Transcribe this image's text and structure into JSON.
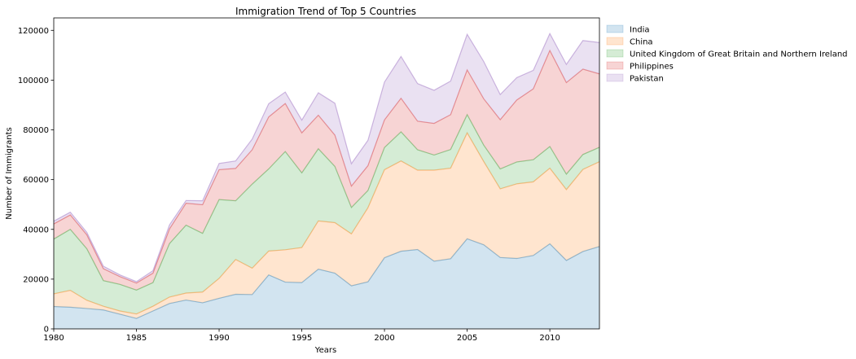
{
  "chart_data": {
    "type": "area",
    "stacked": true,
    "title": "Immigration Trend of Top 5 Countries",
    "xlabel": "Years",
    "ylabel": "Number of Immigrants",
    "xlim": [
      1980,
      2013
    ],
    "ylim": [
      0,
      125000
    ],
    "xticks": [
      1980,
      1985,
      1990,
      1995,
      2000,
      2005,
      2010
    ],
    "yticks": [
      0,
      20000,
      40000,
      60000,
      80000,
      100000,
      120000
    ],
    "grid": false,
    "legend_position": "outside-top-right",
    "alpha": 0.2,
    "x": [
      1980,
      1981,
      1982,
      1983,
      1984,
      1985,
      1986,
      1987,
      1988,
      1989,
      1990,
      1991,
      1992,
      1993,
      1994,
      1995,
      1996,
      1997,
      1998,
      1999,
      2000,
      2001,
      2002,
      2003,
      2004,
      2005,
      2006,
      2007,
      2008,
      2009,
      2010,
      2011,
      2012,
      2013
    ],
    "series": [
      {
        "name": "India",
        "color": "#1f77b4",
        "values": [
          9000,
          8700,
          8200,
          7600,
          5900,
          4200,
          7200,
          10200,
          11600,
          10500,
          12300,
          13900,
          13800,
          21700,
          18800,
          18600,
          24000,
          22400,
          17300,
          18900,
          28600,
          31200,
          31900,
          27200,
          28200,
          36200,
          33800,
          28700,
          28300,
          29500,
          34200,
          27500,
          31100,
          33100
        ]
      },
      {
        "name": "China",
        "color": "#ff7f0e",
        "values": [
          5100,
          6800,
          3300,
          1500,
          1300,
          1800,
          1900,
          2600,
          2800,
          4300,
          8000,
          14000,
          10600,
          9600,
          13000,
          14100,
          19400,
          20300,
          20900,
          29800,
          35400,
          36300,
          31900,
          36600,
          36400,
          42600,
          33500,
          27600,
          30000,
          29600,
          30400,
          28500,
          33000,
          34100
        ]
      },
      {
        "name": "United Kingdom of Great Britain and Northern Ireland",
        "color": "#2ca02c",
        "values": [
          22000,
          24500,
          20700,
          10300,
          10700,
          9600,
          9500,
          21500,
          27300,
          23600,
          31700,
          23600,
          33800,
          33000,
          39500,
          30000,
          29000,
          22600,
          10600,
          6900,
          8900,
          11700,
          8200,
          6100,
          7500,
          7300,
          6600,
          8000,
          8800,
          8900,
          8700,
          6200,
          6000,
          5800
        ]
      },
      {
        "name": "Philippines",
        "color": "#d62728",
        "values": [
          6100,
          5800,
          5600,
          4800,
          3100,
          2800,
          3800,
          5900,
          8800,
          11500,
          12000,
          13000,
          13800,
          20900,
          19300,
          16100,
          13500,
          12600,
          8600,
          10000,
          11100,
          13500,
          11500,
          12700,
          14000,
          18000,
          18600,
          19800,
          24900,
          28500,
          38600,
          36800,
          34300,
          29500
        ]
      },
      {
        "name": "Pakistan",
        "color": "#9467bd",
        "values": [
          1100,
          1100,
          1000,
          1000,
          700,
          600,
          1000,
          1600,
          1100,
          1600,
          2500,
          3000,
          4300,
          5300,
          4600,
          5100,
          9000,
          12800,
          9000,
          10200,
          15200,
          16800,
          15100,
          13300,
          13500,
          14300,
          15000,
          10100,
          9000,
          7400,
          6800,
          7300,
          11500,
          12600
        ]
      }
    ]
  }
}
